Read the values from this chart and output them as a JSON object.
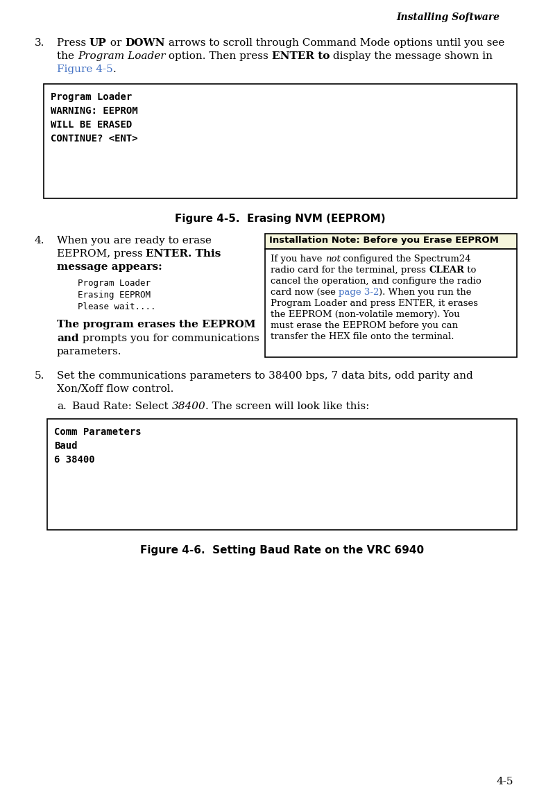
{
  "page_bg": "#ffffff",
  "header_text": "Installing Software",
  "footer_text": "4-5",
  "fig45_box_lines": [
    "Program Loader",
    "WARNING: EEPROM",
    "WILL BE ERASED",
    "CONTINUE? <ENT>"
  ],
  "fig45_caption": "Figure 4-5.  Erasing NVM (EEPROM)",
  "step4_mono_lines": [
    "Program Loader",
    "Erasing EEPROM",
    "Please wait...."
  ],
  "note_title": "Installation Note: Before you Erase EEPROM",
  "fig46_box_lines": [
    "Comm Parameters",
    "Baud",
    "6 38400"
  ],
  "fig46_caption": "Figure 4-6.  Setting Baud Rate on the VRC 6940",
  "body_font_size": 11,
  "mono_font_size": 10,
  "caption_font_size": 11,
  "note_font_size": 10
}
